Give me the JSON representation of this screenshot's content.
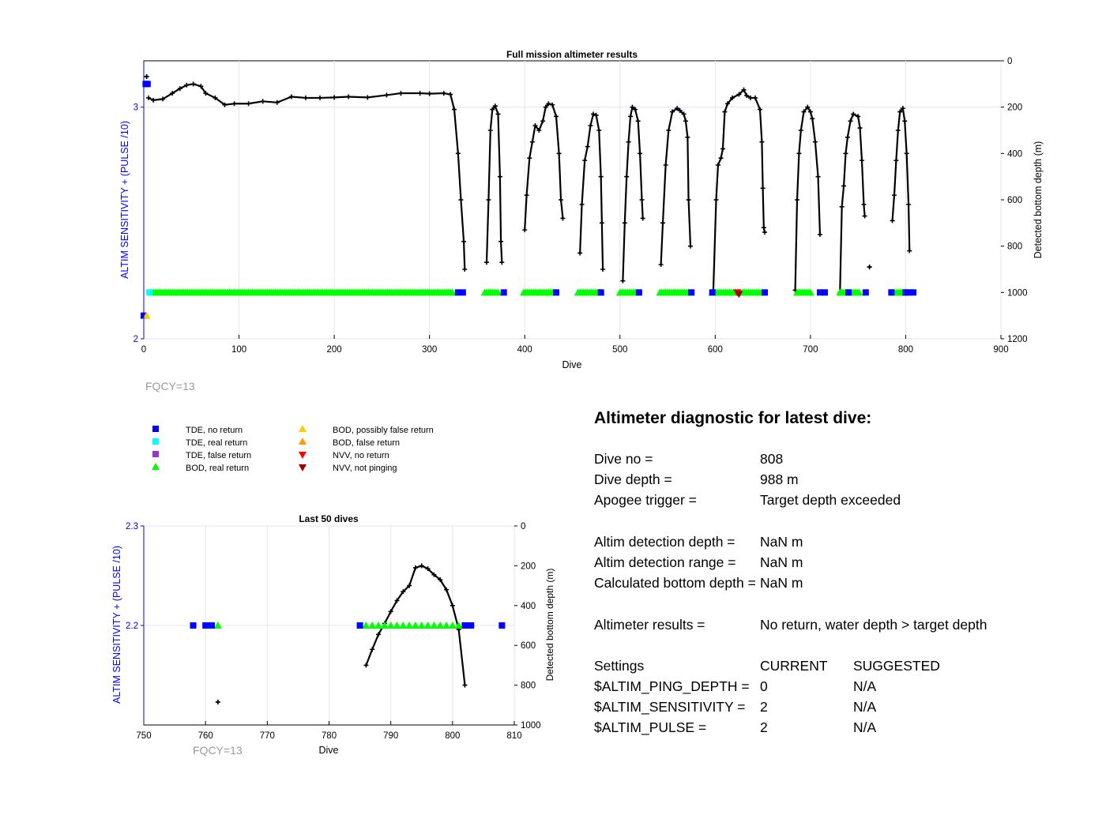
{
  "colors": {
    "tde_no_return": "#0000ff",
    "tde_real_return": "#00ffff",
    "tde_false_return": "#9933cc",
    "bod_real_return": "#00ff00",
    "bod_possibly_false": "#ffcc00",
    "bod_false": "#ff9900",
    "nvv_no_return": "#ff0000",
    "nvv_not_pinging": "#990000",
    "depth_line": "#000000",
    "left_axis": "#0000ff",
    "fqcy": "#999999"
  },
  "chart_data": [
    {
      "type": "scatter",
      "title": "Full mission altimeter results",
      "xlabel": "Dive",
      "ylabel_left": "ALTIM SENSITIVITY + (PULSE /10)",
      "ylabel_right": "Detected bottom depth (m)",
      "xlim": [
        0,
        900
      ],
      "ylim_left": [
        2,
        3.2
      ],
      "ylim_right": [
        0,
        1200
      ],
      "xticks": [
        "0",
        "100",
        "200",
        "300",
        "400",
        "500",
        "600",
        "700",
        "800",
        "900"
      ],
      "yticks_left": [
        "2",
        "3"
      ],
      "yticks_right": [
        "0",
        "200",
        "400",
        "600",
        "800",
        "1000",
        "1200"
      ],
      "grid": true,
      "annotation": "FQCY=13",
      "depth_segments": [
        [
          [
            5,
            160
          ],
          [
            10,
            170
          ],
          [
            20,
            165
          ],
          [
            30,
            140
          ],
          [
            38,
            120
          ],
          [
            45,
            105
          ],
          [
            52,
            100
          ],
          [
            60,
            110
          ],
          [
            65,
            140
          ],
          [
            75,
            160
          ],
          [
            85,
            190
          ],
          [
            95,
            185
          ],
          [
            110,
            185
          ],
          [
            125,
            175
          ],
          [
            140,
            180
          ],
          [
            155,
            155
          ],
          [
            170,
            160
          ],
          [
            185,
            160
          ],
          [
            200,
            158
          ],
          [
            215,
            155
          ],
          [
            235,
            158
          ],
          [
            255,
            148
          ],
          [
            270,
            140
          ],
          [
            290,
            140
          ],
          [
            300,
            142
          ],
          [
            315,
            140
          ],
          [
            322,
            145
          ],
          [
            326,
            210
          ],
          [
            330,
            400
          ],
          [
            333,
            600
          ],
          [
            336,
            780
          ],
          [
            337,
            900
          ]
        ],
        [
          [
            360,
            870
          ],
          [
            362,
            600
          ],
          [
            364,
            300
          ],
          [
            366,
            210
          ],
          [
            369,
            195
          ],
          [
            372,
            230
          ],
          [
            374,
            500
          ],
          [
            375,
            780
          ],
          [
            376,
            870
          ]
        ],
        [
          [
            400,
            730
          ],
          [
            402,
            580
          ],
          [
            405,
            420
          ],
          [
            408,
            350
          ],
          [
            411,
            280
          ],
          [
            415,
            300
          ],
          [
            419,
            260
          ],
          [
            422,
            200
          ],
          [
            425,
            185
          ],
          [
            429,
            190
          ],
          [
            433,
            240
          ],
          [
            436,
            400
          ],
          [
            438,
            600
          ],
          [
            440,
            680
          ]
        ],
        [
          [
            458,
            830
          ],
          [
            460,
            620
          ],
          [
            463,
            430
          ],
          [
            466,
            370
          ],
          [
            469,
            280
          ],
          [
            472,
            230
          ],
          [
            475,
            235
          ],
          [
            478,
            300
          ],
          [
            480,
            500
          ],
          [
            481,
            700
          ],
          [
            482,
            900
          ]
        ],
        [
          [
            503,
            950
          ],
          [
            505,
            700
          ],
          [
            507,
            500
          ],
          [
            509,
            350
          ],
          [
            511,
            240
          ],
          [
            513,
            200
          ],
          [
            516,
            210
          ],
          [
            519,
            260
          ],
          [
            521,
            400
          ],
          [
            523,
            600
          ],
          [
            524,
            680
          ]
        ],
        [
          [
            543,
            880
          ],
          [
            545,
            700
          ],
          [
            548,
            450
          ],
          [
            551,
            300
          ],
          [
            555,
            220
          ],
          [
            560,
            205
          ],
          [
            563,
            215
          ],
          [
            567,
            230
          ],
          [
            569,
            260
          ],
          [
            571,
            330
          ],
          [
            572,
            600
          ],
          [
            574,
            800
          ]
        ],
        [
          [
            598,
            990
          ],
          [
            601,
            600
          ],
          [
            603,
            450
          ],
          [
            606,
            420
          ],
          [
            608,
            380
          ],
          [
            610,
            220
          ],
          [
            613,
            185
          ],
          [
            618,
            160
          ],
          [
            625,
            145
          ],
          [
            630,
            125
          ],
          [
            633,
            150
          ],
          [
            637,
            160
          ],
          [
            642,
            160
          ],
          [
            647,
            210
          ],
          [
            649,
            350
          ],
          [
            650,
            550
          ],
          [
            651,
            720
          ],
          [
            652,
            740
          ]
        ],
        [
          [
            684,
            990
          ],
          [
            686,
            600
          ],
          [
            688,
            400
          ],
          [
            690,
            300
          ],
          [
            693,
            220
          ],
          [
            697,
            200
          ],
          [
            700,
            220
          ],
          [
            702,
            250
          ],
          [
            705,
            350
          ],
          [
            708,
            500
          ],
          [
            710,
            750
          ]
        ],
        [
          [
            731,
            1000
          ],
          [
            733,
            630
          ],
          [
            735,
            540
          ],
          [
            737,
            400
          ],
          [
            739,
            330
          ],
          [
            742,
            260
          ],
          [
            745,
            230
          ],
          [
            750,
            240
          ],
          [
            752,
            290
          ],
          [
            754,
            430
          ],
          [
            756,
            620
          ],
          [
            757,
            670
          ]
        ],
        [
          [
            786,
            690
          ],
          [
            788,
            580
          ],
          [
            790,
            430
          ],
          [
            792,
            300
          ],
          [
            794,
            220
          ],
          [
            797,
            205
          ],
          [
            799,
            260
          ],
          [
            801,
            400
          ],
          [
            803,
            620
          ],
          [
            804,
            820
          ]
        ]
      ],
      "depth_isolated": [
        [
          3,
          68
        ],
        [
          762,
          890
        ]
      ],
      "bod_real_return_runs": [
        [
          8,
          325
        ],
        [
          358,
          372
        ],
        [
          399,
          432
        ],
        [
          456,
          480
        ],
        [
          500,
          518
        ],
        [
          542,
          573
        ],
        [
          597,
          650
        ],
        [
          686,
          700
        ],
        [
          731,
          752
        ],
        [
          786,
          800
        ]
      ],
      "tde_no_return_dives": [
        [
          2,
          3.1
        ],
        [
          4,
          3.1
        ],
        [
          330,
          2.2
        ],
        [
          335,
          2.2
        ],
        [
          378,
          2.2
        ],
        [
          433,
          2.2
        ],
        [
          480,
          2.2
        ],
        [
          520,
          2.2
        ],
        [
          575,
          2.2
        ],
        [
          597,
          2.2
        ],
        [
          652,
          2.2
        ],
        [
          710,
          2.2
        ],
        [
          715,
          2.2
        ],
        [
          740,
          2.2
        ],
        [
          758,
          2.2
        ],
        [
          785,
          2.2
        ],
        [
          800,
          2.2
        ],
        [
          803,
          2.2
        ],
        [
          808,
          2.2
        ],
        [
          0,
          2.1
        ]
      ],
      "tde_real_return_dives": [
        [
          6,
          2.2
        ]
      ],
      "bod_possibly_false_dives": [
        [
          3,
          2.1
        ]
      ],
      "nvv_no_return_dives": [
        [
          623,
          2.2
        ]
      ],
      "nvv_not_pinging_dives": [
        [
          625,
          2.2
        ]
      ]
    },
    {
      "type": "scatter",
      "title": "Last 50 dives",
      "xlabel": "Dive",
      "ylabel_left": "ALTIM SENSITIVITY + (PULSE /10)",
      "ylabel_right": "Detected bottom depth (m)",
      "xlim": [
        750,
        810
      ],
      "ylim_left": [
        2.1,
        2.3
      ],
      "ylim_right": [
        0,
        1000
      ],
      "xticks": [
        "750",
        "760",
        "770",
        "780",
        "790",
        "800",
        "810"
      ],
      "yticks_left": [
        "2.2",
        "2.3"
      ],
      "yticks_right": [
        "0",
        "200",
        "400",
        "600",
        "800",
        "1000"
      ],
      "grid": true,
      "annotation": "FQCY=13",
      "depth_segments": [
        [
          [
            786,
            700
          ],
          [
            787,
            620
          ],
          [
            788,
            545
          ],
          [
            789,
            490
          ],
          [
            790,
            430
          ],
          [
            791,
            375
          ],
          [
            792,
            330
          ],
          [
            793,
            300
          ],
          [
            794,
            210
          ],
          [
            795,
            200
          ],
          [
            796,
            215
          ],
          [
            797,
            245
          ],
          [
            798,
            270
          ],
          [
            799,
            320
          ],
          [
            800,
            400
          ],
          [
            801,
            520
          ],
          [
            802,
            800
          ]
        ]
      ],
      "depth_isolated": [
        [
          762,
          885
        ]
      ],
      "bod_real_return_dives": [
        [
          762,
          2.2
        ],
        [
          786,
          2.2
        ],
        [
          787,
          2.2
        ],
        [
          788,
          2.2
        ],
        [
          789,
          2.2
        ],
        [
          790,
          2.2
        ],
        [
          791,
          2.2
        ],
        [
          792,
          2.2
        ],
        [
          793,
          2.2
        ],
        [
          794,
          2.2
        ],
        [
          795,
          2.2
        ],
        [
          796,
          2.2
        ],
        [
          797,
          2.2
        ],
        [
          798,
          2.2
        ],
        [
          799,
          2.2
        ],
        [
          800,
          2.2
        ],
        [
          801,
          2.2
        ]
      ],
      "tde_no_return_dives": [
        [
          758,
          2.2
        ],
        [
          760,
          2.2
        ],
        [
          761,
          2.2
        ],
        [
          785,
          2.2
        ],
        [
          802,
          2.2
        ],
        [
          803,
          2.2
        ],
        [
          808,
          2.2
        ]
      ]
    }
  ],
  "legend": {
    "col1": [
      {
        "label": "TDE, no return",
        "marker": "square",
        "color": "#0000ff"
      },
      {
        "label": "TDE, real return",
        "marker": "square",
        "color": "#00ffff"
      },
      {
        "label": "TDE, false return",
        "marker": "square",
        "color": "#9933cc"
      },
      {
        "label": "BOD, real return",
        "marker": "triangle-up",
        "color": "#00ff00"
      }
    ],
    "col2": [
      {
        "label": "BOD, possibly false return",
        "marker": "triangle-up",
        "color": "#ffcc00"
      },
      {
        "label": "BOD, false return",
        "marker": "triangle-up",
        "color": "#ff9900"
      },
      {
        "label": "NVV, no return",
        "marker": "triangle-down",
        "color": "#ff0000"
      },
      {
        "label": "NVV, not pinging",
        "marker": "triangle-down",
        "color": "#990000"
      }
    ]
  },
  "diagnostic": {
    "title": "Altimeter diagnostic for latest dive:",
    "dive_no_label": "Dive no =",
    "dive_no_value": "808",
    "dive_depth_label": "Dive depth =",
    "dive_depth_value": "988 m",
    "apogee_label": "Apogee trigger =",
    "apogee_value": "Target depth exceeded",
    "det_depth_label": "Altim detection depth =",
    "det_depth_value": "NaN m",
    "det_range_label": "Altim detection range =",
    "det_range_value": "NaN m",
    "calc_depth_label": "Calculated bottom depth =",
    "calc_depth_value": "NaN m",
    "results_label": "Altimeter results =",
    "results_value": "No return, water depth > target depth",
    "settings_label": "Settings",
    "current_label": "CURRENT",
    "suggested_label": "SUGGESTED",
    "ping_depth_label": "$ALTIM_PING_DEPTH =",
    "ping_depth_current": "0",
    "ping_depth_suggested": "N/A",
    "sensitivity_label": "$ALTIM_SENSITIVITY =",
    "sensitivity_current": "2",
    "sensitivity_suggested": "N/A",
    "pulse_label": "$ALTIM_PULSE =",
    "pulse_current": "2",
    "pulse_suggested": "N/A"
  }
}
